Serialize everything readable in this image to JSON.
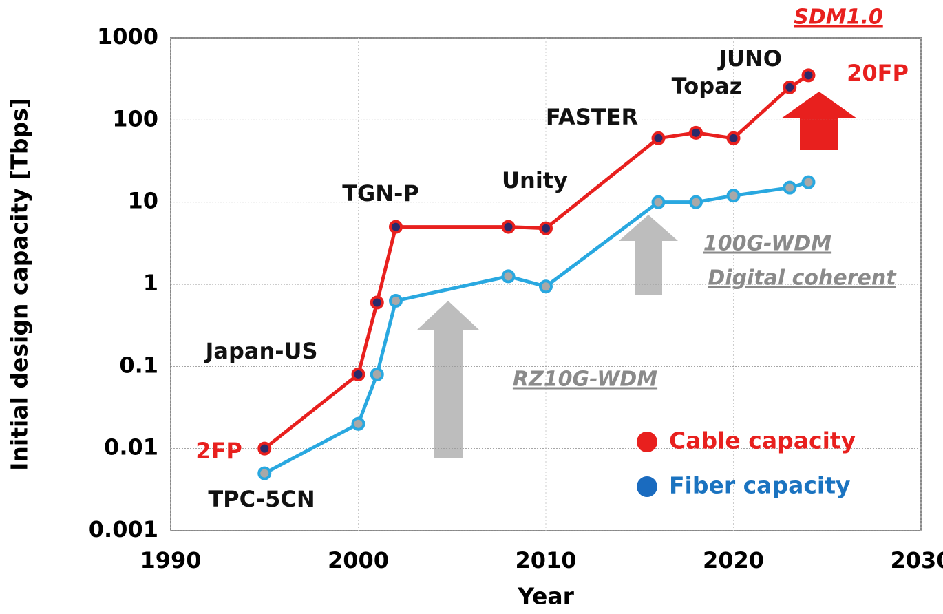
{
  "chart_data": {
    "type": "line",
    "x_label": "Year",
    "y_label": "Initial design capacity [Tbps]",
    "log_y": true,
    "grid": true,
    "xlim": [
      1990,
      2030
    ],
    "xticks": [
      1990,
      2000,
      2010,
      2020,
      2030
    ],
    "ylim": [
      0.001,
      1000
    ],
    "yticks": [
      0.001,
      0.01,
      0.1,
      1,
      10,
      100,
      1000
    ],
    "legend": "lower right",
    "series": [
      {
        "name": "Cable capacity",
        "color": "#e8201e",
        "x": [
          1995,
          2000,
          2001,
          2002,
          2008,
          2010,
          2016,
          2018,
          2020,
          2023,
          2024
        ],
        "values": [
          0.01,
          0.08,
          0.6,
          5,
          5,
          4.8,
          60,
          70,
          60,
          250,
          350
        ]
      },
      {
        "name": "Fiber capacity",
        "color": "#29a8e0",
        "x": [
          1995,
          2000,
          2001,
          2002,
          2008,
          2010,
          2016,
          2018,
          2020,
          2023,
          2024
        ],
        "values": [
          0.005,
          0.02,
          0.08,
          0.63,
          1.25,
          0.94,
          10,
          10,
          12,
          15,
          17.5
        ]
      }
    ],
    "annotations": [
      "SDM1.0",
      "JUNO",
      "Topaz",
      "20FP",
      "FASTER",
      "Unity",
      "TGN-P",
      "Japan-US",
      "2FP",
      "TPC-5CN",
      "100G-WDM",
      "Digital coherent",
      "RZ10G-WDM"
    ]
  }
}
